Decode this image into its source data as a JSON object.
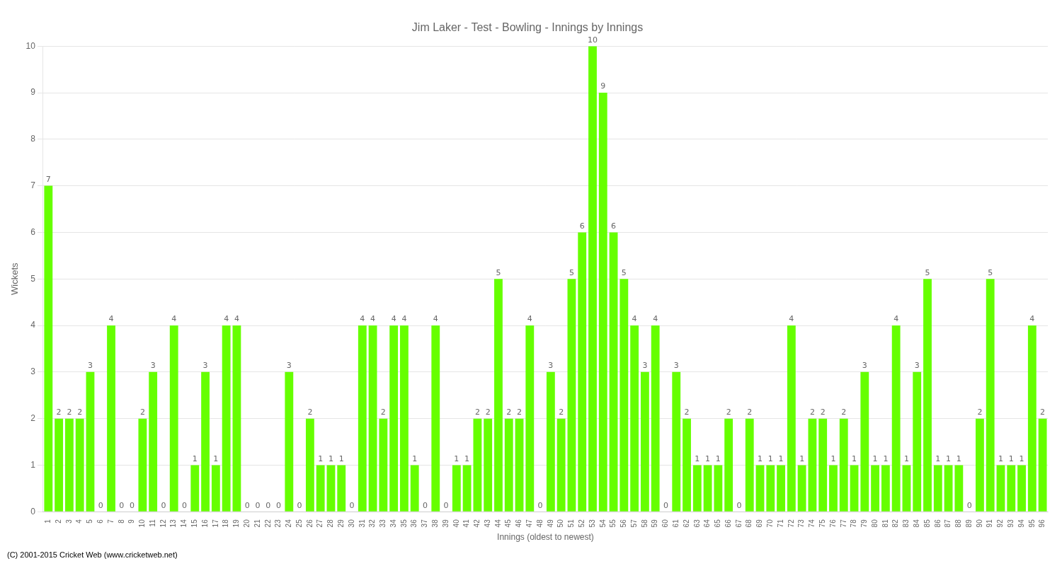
{
  "chart_data": {
    "type": "bar",
    "title": "Jim Laker - Test - Bowling - Innings by Innings",
    "xlabel": "Innings (oldest to newest)",
    "ylabel": "Wickets",
    "footer": "(C) 2001-2015 Cricket Web (www.cricketweb.net)",
    "categories": [
      "1",
      "2",
      "3",
      "4",
      "5",
      "6",
      "7",
      "8",
      "9",
      "10",
      "11",
      "12",
      "13",
      "14",
      "15",
      "16",
      "17",
      "18",
      "19",
      "20",
      "21",
      "22",
      "23",
      "24",
      "25",
      "26",
      "27",
      "28",
      "29",
      "30",
      "31",
      "32",
      "33",
      "34",
      "35",
      "36",
      "37",
      "38",
      "39",
      "40",
      "41",
      "42",
      "43",
      "44",
      "45",
      "46",
      "47",
      "48",
      "49",
      "50",
      "51",
      "52",
      "53",
      "54",
      "55",
      "56",
      "57",
      "58",
      "59",
      "60",
      "61",
      "62",
      "63",
      "64",
      "65",
      "66",
      "67",
      "68",
      "69",
      "70",
      "71",
      "72",
      "73",
      "74",
      "75",
      "76",
      "77",
      "78",
      "79",
      "80",
      "81",
      "82",
      "83",
      "84",
      "85",
      "86",
      "87",
      "88",
      "89",
      "90",
      "91",
      "92",
      "93",
      "94",
      "95",
      "96"
    ],
    "values": [
      7,
      2,
      2,
      2,
      3,
      0,
      4,
      0,
      0,
      2,
      3,
      0,
      4,
      0,
      1,
      3,
      1,
      4,
      4,
      0,
      0,
      0,
      0,
      3,
      0,
      2,
      1,
      1,
      1,
      0,
      4,
      4,
      2,
      4,
      4,
      1,
      0,
      4,
      0,
      1,
      1,
      2,
      2,
      5,
      2,
      2,
      4,
      0,
      3,
      2,
      5,
      6,
      10,
      9,
      6,
      5,
      4,
      3,
      4,
      0,
      3,
      2,
      1,
      1,
      1,
      2,
      0,
      2,
      1,
      1,
      1,
      4,
      1,
      2,
      2,
      1,
      2,
      1,
      3,
      1,
      1,
      4,
      1,
      3,
      5,
      1,
      1,
      1,
      0,
      2,
      5,
      1,
      1,
      1,
      4,
      2
    ],
    "color": "#66ff00",
    "data_labels": true,
    "ylim": [
      0,
      10
    ],
    "yticks": [
      0,
      1,
      2,
      3,
      4,
      5,
      6,
      7,
      8,
      9,
      10
    ],
    "grid": true
  }
}
